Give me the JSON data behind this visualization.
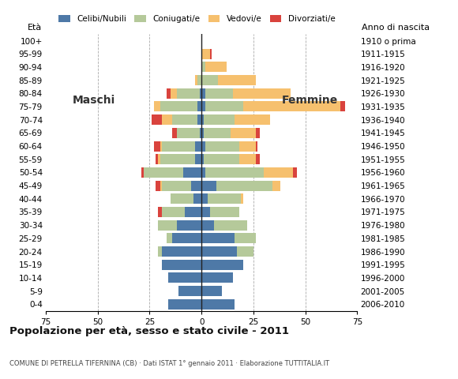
{
  "age_groups": [
    "0-4",
    "5-9",
    "10-14",
    "15-19",
    "20-24",
    "25-29",
    "30-34",
    "35-39",
    "40-44",
    "45-49",
    "50-54",
    "55-59",
    "60-64",
    "65-69",
    "70-74",
    "75-79",
    "80-84",
    "85-89",
    "90-94",
    "95-99",
    "100+"
  ],
  "birth_years": [
    "2006-2010",
    "2001-2005",
    "1996-2000",
    "1991-1995",
    "1986-1990",
    "1981-1985",
    "1976-1980",
    "1971-1975",
    "1966-1970",
    "1961-1965",
    "1956-1960",
    "1951-1955",
    "1946-1950",
    "1941-1945",
    "1936-1940",
    "1931-1935",
    "1926-1930",
    "1921-1925",
    "1916-1920",
    "1911-1915",
    "1910 o prima"
  ],
  "males": {
    "celibe": [
      16,
      11,
      16,
      19,
      19,
      14,
      12,
      8,
      4,
      5,
      9,
      3,
      3,
      1,
      2,
      2,
      1,
      0,
      0,
      0,
      0
    ],
    "coniugato": [
      0,
      0,
      0,
      0,
      2,
      3,
      9,
      11,
      11,
      14,
      19,
      17,
      16,
      11,
      12,
      18,
      11,
      2,
      0,
      0,
      0
    ],
    "vedovo": [
      0,
      0,
      0,
      0,
      0,
      0,
      0,
      0,
      0,
      1,
      0,
      1,
      1,
      0,
      5,
      3,
      3,
      1,
      0,
      0,
      0
    ],
    "divorziato": [
      0,
      0,
      0,
      0,
      0,
      0,
      0,
      2,
      0,
      2,
      1,
      1,
      3,
      2,
      5,
      0,
      2,
      0,
      0,
      0,
      0
    ]
  },
  "females": {
    "nubile": [
      16,
      10,
      15,
      20,
      17,
      16,
      6,
      4,
      3,
      7,
      2,
      1,
      2,
      1,
      1,
      2,
      2,
      0,
      0,
      0,
      0
    ],
    "coniugata": [
      0,
      0,
      0,
      0,
      8,
      10,
      16,
      14,
      16,
      27,
      28,
      17,
      16,
      13,
      15,
      18,
      13,
      8,
      2,
      0,
      0
    ],
    "vedova": [
      0,
      0,
      0,
      0,
      0,
      0,
      0,
      0,
      1,
      4,
      14,
      8,
      8,
      12,
      17,
      47,
      28,
      18,
      10,
      4,
      0
    ],
    "divorziata": [
      0,
      0,
      0,
      0,
      0,
      0,
      0,
      0,
      0,
      0,
      2,
      2,
      1,
      2,
      0,
      2,
      0,
      0,
      0,
      1,
      0
    ]
  },
  "colors": {
    "celibe": "#4e79a7",
    "coniugato": "#b5c99a",
    "vedovo": "#f6c06e",
    "divorziato": "#d9433d"
  },
  "xlim": 75,
  "xticks": [
    -75,
    -50,
    -25,
    0,
    25,
    50,
    75
  ],
  "xticklabels": [
    "75",
    "50",
    "25",
    "0",
    "25",
    "50",
    "75"
  ],
  "grid_lines": [
    -50,
    -25,
    25,
    50
  ],
  "title": "Popolazione per età, sesso e stato civile - 2011",
  "subtitle": "COMUNE DI PETRELLA TIFERNINA (CB) · Dati ISTAT 1° gennaio 2011 · Elaborazione TUTTITALIA.IT",
  "legend_labels": [
    "Celibi/Nubili",
    "Coniugati/e",
    "Vedovi/e",
    "Divorziati/e"
  ],
  "label_maschi": "Maschi",
  "label_femmine": "Femmine",
  "label_eta": "Età",
  "label_anno": "Anno di nascita"
}
